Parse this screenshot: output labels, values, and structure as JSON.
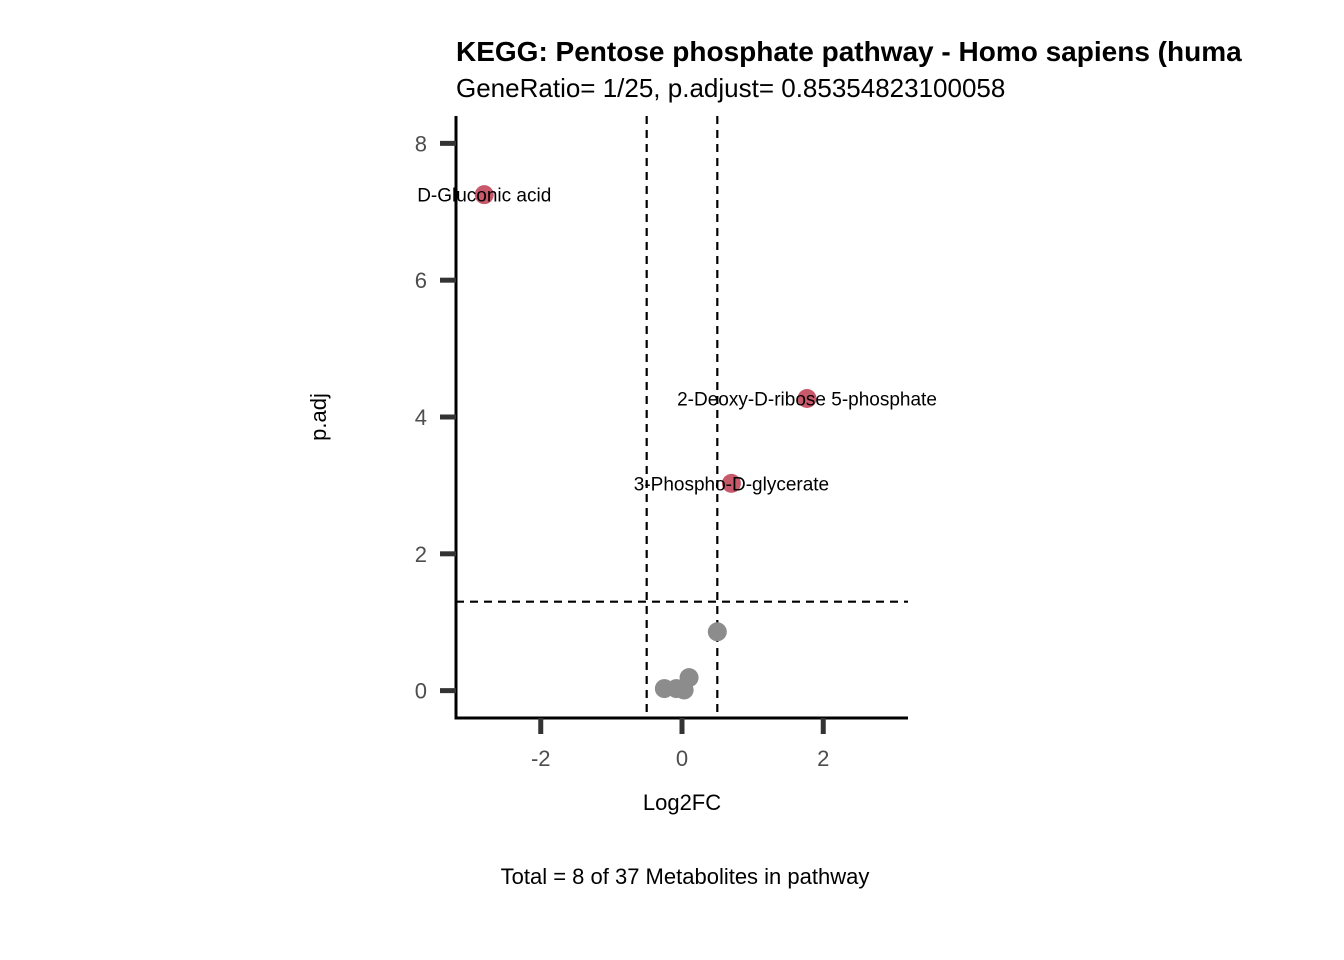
{
  "chart_data": {
    "type": "scatter",
    "title": "KEGG: Pentose phosphate pathway - Homo sapiens (huma",
    "subtitle": "GeneRatio= 1/25, p.adjust= 0.85354823100058",
    "xlabel": "Log2FC",
    "ylabel": "p.adj",
    "caption": "Total = 8 of 37 Metabolites in pathway",
    "xlim": [
      -3.2,
      3.2
    ],
    "ylim": [
      -0.4,
      8.4
    ],
    "x_ticks": [
      -2,
      0,
      2
    ],
    "y_ticks": [
      0,
      2,
      4,
      6,
      8
    ],
    "grid": false,
    "thresholds": {
      "log2fc": [
        -0.5,
        0.5
      ],
      "p_adj": 1.3
    },
    "colors": {
      "significant": "#c8596b",
      "not_significant": "#8c8c8c",
      "threshold_line": "#000000",
      "axis": "#000000",
      "tick": "#333333"
    },
    "points": [
      {
        "label": "D-Gluconic acid",
        "x": -2.8,
        "y": 7.25,
        "significant": true
      },
      {
        "label": "2-Deoxy-D-ribose 5-phosphate",
        "x": 1.77,
        "y": 4.27,
        "significant": true
      },
      {
        "label": "3-Phospho-D-glycerate",
        "x": 0.7,
        "y": 3.03,
        "significant": true
      },
      {
        "label": "",
        "x": 0.5,
        "y": 0.86,
        "significant": false
      },
      {
        "label": "",
        "x": 0.1,
        "y": 0.19,
        "significant": false
      },
      {
        "label": "",
        "x": -0.25,
        "y": 0.03,
        "significant": false
      },
      {
        "label": "",
        "x": -0.08,
        "y": 0.03,
        "significant": false
      },
      {
        "label": "",
        "x": 0.03,
        "y": 0.01,
        "significant": false
      }
    ]
  }
}
